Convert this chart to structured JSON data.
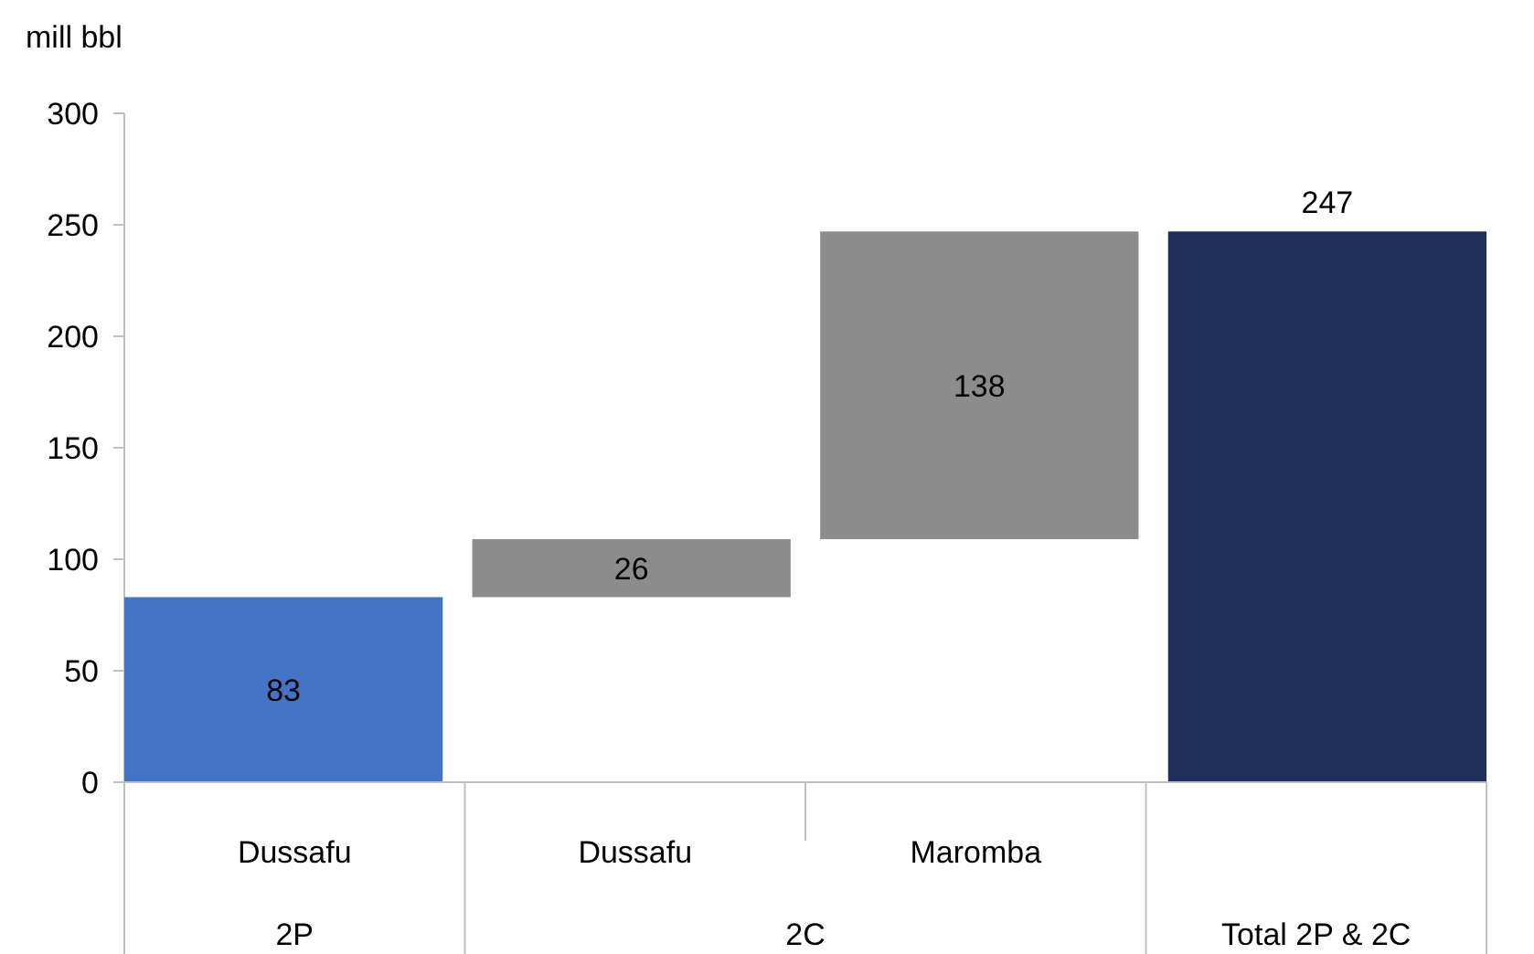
{
  "chart_data": {
    "type": "bar",
    "ylabel": "mill bbl",
    "categories": [
      "Dussafu",
      "Dussafu",
      "Maromba",
      null
    ],
    "values": [
      83,
      26,
      138,
      247
    ],
    "base": [
      0,
      83,
      109,
      0
    ],
    "colors": [
      "#4472c4",
      "#8c8c8c",
      "#8c8c8c",
      "#1f2f5c"
    ],
    "ylim": [
      0,
      300
    ],
    "yticks": [
      0,
      50,
      100,
      150,
      200,
      250,
      300
    ],
    "data_labels": true,
    "annotations": [
      "2P",
      "2C",
      "Total 2P & 2C"
    ]
  }
}
